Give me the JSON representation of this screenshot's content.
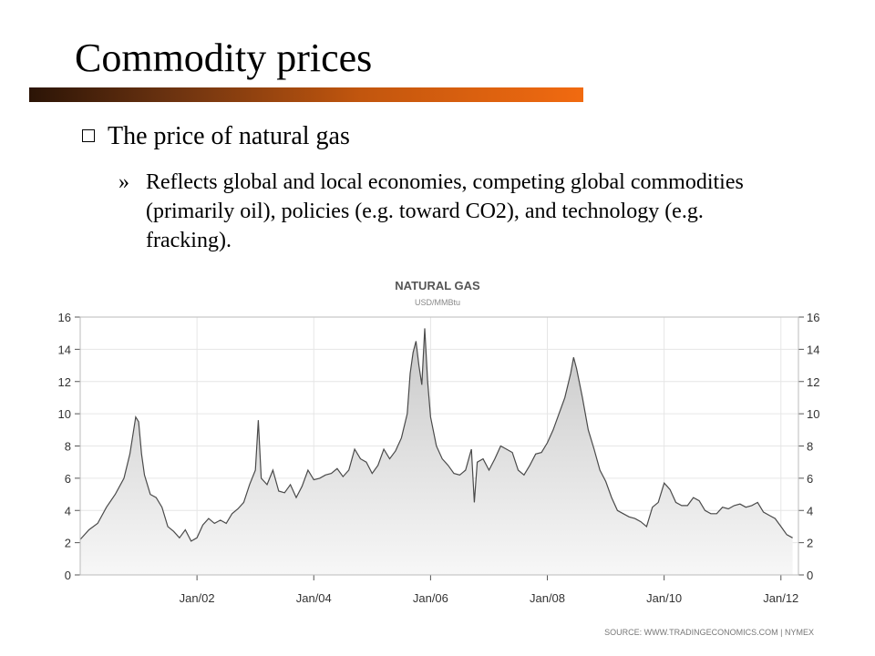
{
  "slide": {
    "title": "Commodity prices",
    "bullet": "The price of natural gas",
    "sub_marker": "»",
    "sub_bullet": "Reflects global and local economies, competing global commodities (primarily oil), policies (e.g. toward CO2), and technology (e.g. fracking)."
  },
  "colors": {
    "title_bar_start": "#2b1406",
    "title_bar_end": "#f16a10",
    "line": "#4a4a4a",
    "area_top": "#c8c8c8",
    "area_bottom": "#f7f7f7"
  },
  "chart_data": {
    "type": "area",
    "title": "NATURAL GAS",
    "subtitle": "USD/MMBtu",
    "source": "SOURCE:  WWW.TRADINGECONOMICS.COM  |  NYMEX",
    "x_ticks": [
      {
        "label": "Jan/02",
        "x": 2002.0
      },
      {
        "label": "Jan/04",
        "x": 2004.0
      },
      {
        "label": "Jan/06",
        "x": 2006.0
      },
      {
        "label": "Jan/08",
        "x": 2008.0
      },
      {
        "label": "Jan/10",
        "x": 2010.0
      },
      {
        "label": "Jan/12",
        "x": 2012.0
      }
    ],
    "y_ticks": [
      0,
      2,
      4,
      6,
      8,
      10,
      12,
      14,
      16
    ],
    "xlim": [
      2000.0,
      2012.3
    ],
    "ylim": [
      0,
      16
    ],
    "grid": true,
    "series": [
      {
        "x": [
          2000.0,
          2000.15,
          2000.3,
          2000.45,
          2000.6,
          2000.75,
          2000.85,
          2000.95,
          2001.0,
          2001.05,
          2001.1,
          2001.2,
          2001.3,
          2001.4,
          2001.5,
          2001.6,
          2001.7,
          2001.8,
          2001.9,
          2002.0,
          2002.1,
          2002.2,
          2002.3,
          2002.4,
          2002.5,
          2002.6,
          2002.7,
          2002.8,
          2002.9,
          2003.0,
          2003.05,
          2003.1,
          2003.15,
          2003.2,
          2003.3,
          2003.4,
          2003.5,
          2003.6,
          2003.7,
          2003.8,
          2003.9,
          2004.0,
          2004.1,
          2004.2,
          2004.3,
          2004.4,
          2004.5,
          2004.6,
          2004.7,
          2004.8,
          2004.9,
          2005.0,
          2005.1,
          2005.2,
          2005.3,
          2005.4,
          2005.5,
          2005.6,
          2005.65,
          2005.7,
          2005.75,
          2005.8,
          2005.85,
          2005.9,
          2005.95,
          2006.0,
          2006.1,
          2006.2,
          2006.3,
          2006.4,
          2006.5,
          2006.6,
          2006.7,
          2006.75,
          2006.8,
          2006.9,
          2007.0,
          2007.1,
          2007.2,
          2007.3,
          2007.4,
          2007.5,
          2007.6,
          2007.7,
          2007.8,
          2007.9,
          2008.0,
          2008.1,
          2008.2,
          2008.3,
          2008.4,
          2008.45,
          2008.5,
          2008.6,
          2008.7,
          2008.8,
          2008.9,
          2009.0,
          2009.1,
          2009.2,
          2009.3,
          2009.4,
          2009.5,
          2009.6,
          2009.7,
          2009.8,
          2009.9,
          2010.0,
          2010.05,
          2010.1,
          2010.2,
          2010.3,
          2010.4,
          2010.5,
          2010.6,
          2010.7,
          2010.8,
          2010.9,
          2011.0,
          2011.1,
          2011.2,
          2011.3,
          2011.4,
          2011.5,
          2011.6,
          2011.7,
          2011.8,
          2011.9,
          2012.0,
          2012.1,
          2012.2
        ],
        "values": [
          2.2,
          2.8,
          3.2,
          4.2,
          5.0,
          6.0,
          7.5,
          9.8,
          9.5,
          7.5,
          6.2,
          5.0,
          4.8,
          4.2,
          3.0,
          2.7,
          2.3,
          2.8,
          2.1,
          2.3,
          3.1,
          3.5,
          3.2,
          3.4,
          3.2,
          3.8,
          4.1,
          4.5,
          5.6,
          6.5,
          9.6,
          6.0,
          5.8,
          5.6,
          6.5,
          5.2,
          5.1,
          5.6,
          4.8,
          5.5,
          6.5,
          5.9,
          6.0,
          6.2,
          6.3,
          6.6,
          6.1,
          6.5,
          7.8,
          7.2,
          7.0,
          6.3,
          6.8,
          7.8,
          7.2,
          7.7,
          8.5,
          10.0,
          12.5,
          13.8,
          14.5,
          13.0,
          11.8,
          15.3,
          12.0,
          9.8,
          8.0,
          7.2,
          6.8,
          6.3,
          6.2,
          6.5,
          7.8,
          4.5,
          7.0,
          7.2,
          6.5,
          7.2,
          8.0,
          7.8,
          7.6,
          6.5,
          6.2,
          6.8,
          7.5,
          7.6,
          8.2,
          9.0,
          10.0,
          11.0,
          12.5,
          13.5,
          12.8,
          11.0,
          9.0,
          7.8,
          6.5,
          5.8,
          4.8,
          4.0,
          3.8,
          3.6,
          3.5,
          3.3,
          3.0,
          4.2,
          4.5,
          5.7,
          5.5,
          5.3,
          4.5,
          4.3,
          4.3,
          4.8,
          4.6,
          4.0,
          3.8,
          3.8,
          4.2,
          4.1,
          4.3,
          4.4,
          4.2,
          4.3,
          4.5,
          3.9,
          3.7,
          3.5,
          3.0,
          2.5,
          2.3
        ]
      }
    ]
  }
}
